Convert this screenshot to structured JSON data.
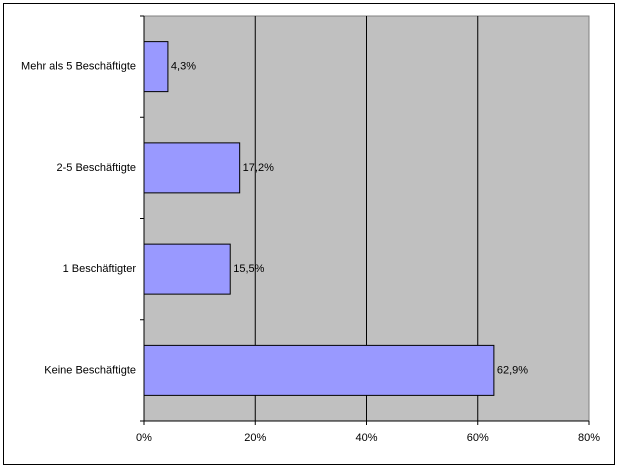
{
  "chart_data": {
    "type": "bar",
    "orientation": "horizontal",
    "categories": [
      "Mehr als 5 Beschäftigte",
      "2-5 Beschäftigte",
      "1 Beschäftigter",
      "Keine Beschäftigte"
    ],
    "values": [
      4.3,
      17.2,
      15.5,
      62.9
    ],
    "value_labels": [
      "4,3%",
      "17,2%",
      "15,5%",
      "62,9%"
    ],
    "color": "#9999ff",
    "xlim": [
      0,
      80
    ],
    "xticks": [
      {
        "value": 0,
        "label": "0%"
      },
      {
        "value": 20,
        "label": "20%"
      },
      {
        "value": 40,
        "label": "40%"
      },
      {
        "value": 60,
        "label": "60%"
      },
      {
        "value": 80,
        "label": "80%"
      }
    ],
    "grid": true
  }
}
